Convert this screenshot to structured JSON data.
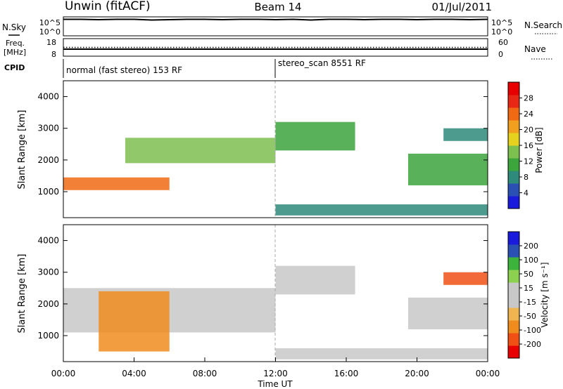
{
  "header": {
    "station": "Unwin (fitACF)",
    "beam": "Beam 14",
    "date": "01/Jul/2011"
  },
  "colors": {
    "power_scale": [
      "#1a1adc",
      "#2a50b4",
      "#2e8a7a",
      "#3ca53c",
      "#7ec050",
      "#e6d21e",
      "#f0a01e",
      "#f06a14",
      "#e82814",
      "#e80000"
    ],
    "velocity_scale": [
      "#e80000",
      "#f05014",
      "#f08c1e",
      "#f0b450",
      "#c8c8c8",
      "#c8c8c8",
      "#8cd250",
      "#3cb43c",
      "#2a50b4",
      "#1a1adc"
    ]
  },
  "chart_data": [
    {
      "type": "line",
      "title": "",
      "left_label": "N.Sky",
      "right_label": "N.Search",
      "left_ticks": [
        "10^5",
        "10^0"
      ],
      "right_ticks": [
        "10^5",
        "10^0"
      ],
      "ylabel": "",
      "ylim": [
        0,
        5
      ],
      "series": [
        {
          "name": "N.Sky",
          "values": [
            4.9,
            4.9,
            4.8,
            4.9,
            4.9,
            4.7,
            4.8,
            4.9,
            4.9,
            4.8,
            4.9,
            4.9,
            4.8,
            4.9,
            4.7,
            4.9,
            4.9,
            4.8,
            4.9,
            4.9,
            4.8,
            4.9,
            4.9,
            4.8,
            4.9
          ]
        }
      ],
      "x": [
        "00:00",
        "01:00",
        "02:00",
        "03:00",
        "04:00",
        "05:00",
        "06:00",
        "07:00",
        "08:00",
        "09:00",
        "10:00",
        "11:00",
        "12:00",
        "13:00",
        "14:00",
        "15:00",
        "16:00",
        "17:00",
        "18:00",
        "19:00",
        "20:00",
        "21:00",
        "22:00",
        "23:00",
        "00:00"
      ]
    },
    {
      "type": "line",
      "title": "",
      "left_label_lines": [
        "Freq.",
        "[MHz]"
      ],
      "right_label": "Nave",
      "left_ticks": [
        "18",
        "8"
      ],
      "right_ticks": [
        "60",
        "0"
      ],
      "ylim": [
        8,
        18
      ],
      "series": [
        {
          "name": "",
          "values": [
            12.0,
            12.0,
            12.0,
            12.0,
            12.0,
            12.0,
            12.0,
            12.0,
            12.0,
            12.0,
            12.0,
            12.0,
            12.0,
            12.0,
            12.0,
            12.0,
            12.0,
            12.0,
            12.0,
            12.0,
            12.0,
            12.0,
            12.0,
            12.0,
            12.0
          ]
        },
        {
          "name": "Nave",
          "values": [
            30,
            30,
            30,
            30,
            30,
            30,
            30,
            30,
            30,
            30,
            30,
            30,
            30,
            30,
            30,
            30,
            30,
            30,
            30,
            30,
            30,
            30,
            30,
            30,
            30
          ]
        }
      ]
    },
    {
      "type": "table",
      "label": "CPID",
      "segments": [
        {
          "label": "normal (fast stereo) 153 RF",
          "start_hour": 0,
          "end_hour": 12
        },
        {
          "label": "stereo_scan 8551 RF",
          "start_hour": 12,
          "end_hour": 24
        }
      ]
    },
    {
      "type": "heatmap",
      "title": "",
      "ylabel": "Slant Range [km]",
      "xlabel": "",
      "ylim": [
        180,
        4500
      ],
      "yticks": [
        "1000",
        "2000",
        "3000",
        "4000"
      ],
      "colorbar_label": "Power [dB]",
      "colorbar_ticks": [
        "4",
        "8",
        "12",
        "16",
        "20",
        "24",
        "28"
      ],
      "clim": [
        0,
        30
      ],
      "echo_bands": [
        {
          "x_start": 0.0,
          "x_end": 6.0,
          "range_start": 1050,
          "range_end": 1450,
          "level": 24
        },
        {
          "x_start": 3.5,
          "x_end": 12.0,
          "range_start": 1900,
          "range_end": 2700,
          "level": 14
        },
        {
          "x_start": 12.0,
          "x_end": 16.5,
          "range_start": 2300,
          "range_end": 3200,
          "level": 10
        },
        {
          "x_start": 12.0,
          "x_end": 24.0,
          "range_start": 250,
          "range_end": 600,
          "level": 6
        },
        {
          "x_start": 19.5,
          "x_end": 24.0,
          "range_start": 1200,
          "range_end": 2200,
          "level": 10
        },
        {
          "x_start": 21.5,
          "x_end": 24.0,
          "range_start": 2600,
          "range_end": 3000,
          "level": 6
        }
      ]
    },
    {
      "type": "heatmap",
      "title": "",
      "ylabel": "Slant Range [km]",
      "xlabel": "Time UT",
      "ylim": [
        180,
        4500
      ],
      "yticks": [
        "1000",
        "2000",
        "3000",
        "4000"
      ],
      "xticks": [
        "00:00",
        "04:00",
        "08:00",
        "12:00",
        "16:00",
        "20:00",
        "00:00"
      ],
      "colorbar_label": "Velocity [m s⁻¹]",
      "colorbar_ticks": [
        "-200",
        "-100",
        "-50",
        "-15",
        "15",
        "50",
        "100",
        "200"
      ],
      "clim": [
        -250,
        250
      ],
      "echo_bands": [
        {
          "x_start": 0.0,
          "x_end": 12.0,
          "range_start": 1100,
          "range_end": 2500,
          "velocity": 0
        },
        {
          "x_start": 12.0,
          "x_end": 16.5,
          "range_start": 2300,
          "range_end": 3200,
          "velocity": 0
        },
        {
          "x_start": 2.0,
          "x_end": 6.0,
          "range_start": 500,
          "range_end": 2400,
          "velocity": -150
        },
        {
          "x_start": 12.0,
          "x_end": 24.0,
          "range_start": 250,
          "range_end": 600,
          "velocity": 40
        },
        {
          "x_start": 19.5,
          "x_end": 24.0,
          "range_start": 1200,
          "range_end": 2200,
          "velocity": 0
        },
        {
          "x_start": 21.5,
          "x_end": 24.0,
          "range_start": 2600,
          "range_end": 3000,
          "velocity": -200
        }
      ]
    }
  ]
}
